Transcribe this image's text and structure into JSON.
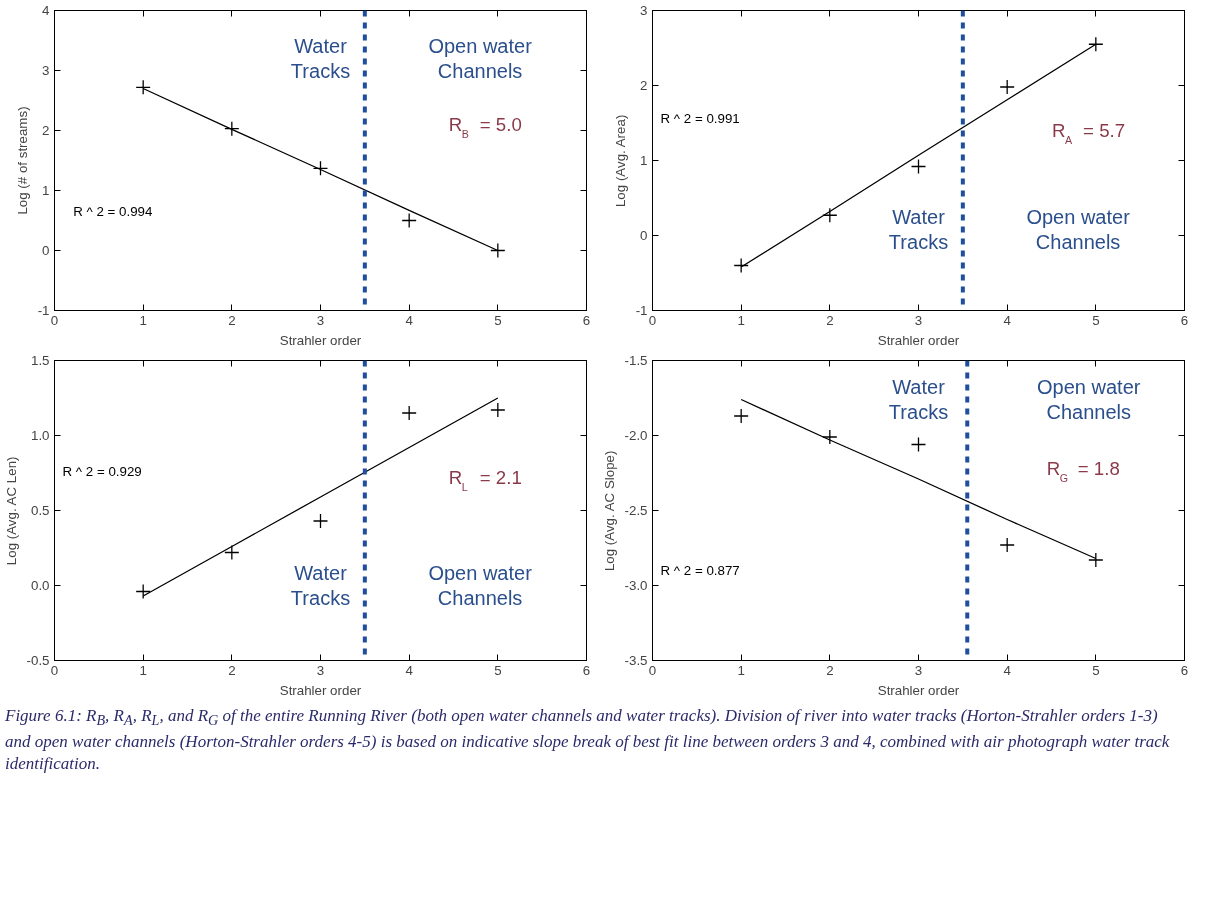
{
  "chart_data": [
    {
      "type": "scatter",
      "xlabel": "Strahler order",
      "ylabel": "Log (# of streams)",
      "x": [
        1,
        2,
        3,
        4,
        5
      ],
      "xlim": [
        0,
        6
      ],
      "xticks": [
        0,
        1,
        2,
        3,
        4,
        5,
        6
      ],
      "ylim": [
        -1,
        4
      ],
      "yticks": [
        -1,
        0,
        1,
        2,
        3,
        4
      ],
      "grid": false,
      "series": [
        {
          "color": "#000000",
          "marker": "cross",
          "values": [
            2.72,
            2.03,
            1.37,
            0.5,
            0.0
          ]
        },
        {
          "type": "line",
          "marker": "none",
          "color": "#000000",
          "values": [
            2.7,
            2.02,
            1.35,
            0.67,
            0.0
          ]
        }
      ],
      "ref_lines": [
        {
          "axis": "x",
          "value": 3.5,
          "label": null,
          "color": "#1f4e9c",
          "line_style": "dashed"
        }
      ],
      "annotations": [
        "Water Tracks",
        "Open water Channels",
        "R$_{B}$ = 5.0",
        "R ^ 2 =    0.994"
      ]
    },
    {
      "type": "scatter",
      "xlabel": "Strahler order",
      "ylabel": "Log (Avg. Area)",
      "x": [
        1,
        2,
        3,
        4,
        5
      ],
      "xlim": [
        0,
        6
      ],
      "xticks": [
        0,
        1,
        2,
        3,
        4,
        5,
        6
      ],
      "ylim": [
        -1,
        3
      ],
      "yticks": [
        -1,
        0,
        1,
        2,
        3
      ],
      "grid": false,
      "series": [
        {
          "color": "#000000",
          "marker": "cross",
          "values": [
            -0.4,
            0.27,
            0.92,
            1.98,
            2.55
          ]
        },
        {
          "type": "line",
          "marker": "none",
          "color": "#000000",
          "values": [
            -0.42,
            0.32,
            1.07,
            1.81,
            2.55
          ]
        }
      ],
      "ref_lines": [
        {
          "axis": "x",
          "value": 3.5,
          "label": null,
          "color": "#1f4e9c",
          "line_style": "dashed"
        }
      ],
      "annotations": [
        "Water Tracks",
        "Open water Channels",
        "R$_{A}$ = 5.7",
        "R ^ 2 =    0.991"
      ]
    },
    {
      "type": "scatter",
      "xlabel": "Strahler order",
      "ylabel": "Log (Avg. AC Len)",
      "x": [
        1,
        2,
        3,
        4,
        5
      ],
      "xlim": [
        0,
        6
      ],
      "xticks": [
        0,
        1,
        2,
        3,
        4,
        5,
        6
      ],
      "ylim": [
        -0.5,
        1.5
      ],
      "yticks": [
        -0.5,
        {
          "value": 0,
          "label": "0.0"
        },
        0.5,
        {
          "value": 1,
          "label": "1.0"
        },
        1.5
      ],
      "grid": false,
      "series": [
        {
          "color": "#000000",
          "marker": "cross",
          "values": [
            -0.04,
            0.22,
            0.43,
            1.15,
            1.17
          ]
        },
        {
          "type": "line",
          "marker": "none",
          "color": "#000000",
          "values": [
            -0.07,
            0.26,
            0.59,
            0.92,
            1.25
          ]
        }
      ],
      "ref_lines": [
        {
          "axis": "x",
          "value": 3.5,
          "label": null,
          "color": "#1f4e9c",
          "line_style": "dashed"
        }
      ],
      "annotations": [
        "Water Tracks",
        "Open water Channels",
        "R$_{L}$ = 2.1",
        "R ^ 2 =    0.929"
      ]
    },
    {
      "type": "scatter",
      "xlabel": "Strahler order",
      "ylabel": "Log (Avg. AC Slope)",
      "x": [
        1,
        2,
        3,
        4,
        5
      ],
      "xlim": [
        0,
        6
      ],
      "xticks": [
        0,
        1,
        2,
        3,
        4,
        5,
        6
      ],
      "ylim": [
        -3.5,
        -1.5
      ],
      "yticks": [
        -3.5,
        {
          "value": -3,
          "label": "-3.0"
        },
        -2.5,
        {
          "value": -2,
          "label": "-2.0"
        },
        -1.5
      ],
      "grid": false,
      "series": [
        {
          "color": "#000000",
          "marker": "cross",
          "values": [
            -1.87,
            -2.01,
            -2.06,
            -2.73,
            -2.83
          ]
        },
        {
          "type": "line",
          "marker": "none",
          "color": "#000000",
          "values": [
            -1.76,
            -2.03,
            -2.29,
            -2.56,
            -2.82
          ]
        }
      ],
      "ref_lines": [
        {
          "axis": "x",
          "value": 3.55,
          "label": null,
          "color": "#1f4e9c",
          "line_style": "dashed"
        }
      ],
      "annotations": [
        "Water Tracks",
        "Open water Channels",
        "R$_{G}$ = 1.8",
        "R ^ 2 =    0.877",
        "Figure 6.1:  R$_{B}$, R$_{A}$, R$_{L}$, and R$_{G}$ of the entire Running River (both open water channels and water tracks). Division of river into water tracks (Horton-Strahler orders 1-3) and open water channels (Horton-Strahler orders 4-5) is based on indicative slope break of best fit line between orders 3 and 4,  combined with air photograph water track identification."
      ]
    }
  ]
}
